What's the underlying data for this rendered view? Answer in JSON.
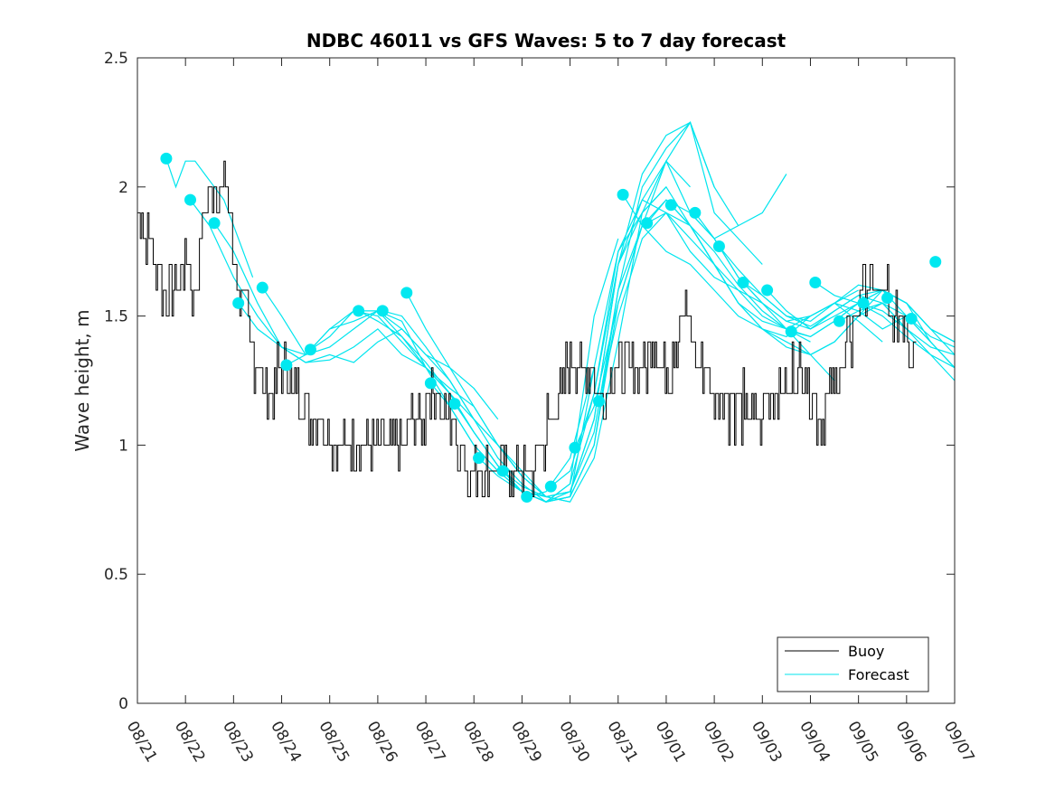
{
  "chart_data": {
    "type": "line",
    "title": "NDBC 46011 vs GFS Waves: 5 to 7 day forecast",
    "xlabel": "",
    "ylabel": "Wave height, m",
    "xlim": [
      0,
      17
    ],
    "ylim": [
      0,
      2.5
    ],
    "yticks": [
      0,
      0.5,
      1,
      1.5,
      2,
      2.5
    ],
    "ytick_labels": [
      "0",
      "0.5",
      "1",
      "1.5",
      "2",
      "2.5"
    ],
    "xtick_labels": [
      "08/21",
      "08/22",
      "08/23",
      "08/24",
      "08/25",
      "08/26",
      "08/27",
      "08/28",
      "08/29",
      "08/30",
      "08/31",
      "09/01",
      "09/02",
      "09/03",
      "09/04",
      "09/05",
      "09/06",
      "09/07"
    ],
    "legend": {
      "position": "bottom-right",
      "entries": [
        {
          "label": "Buoy",
          "color": "#000000"
        },
        {
          "label": "Forecast",
          "color": "#00e5ee"
        }
      ]
    },
    "colors": {
      "buoy": "#000000",
      "forecast": "#00e5ee",
      "marker": "#00e8f0"
    },
    "buoy_anchors": {
      "x": [
        0,
        0.1,
        0.3,
        0.5,
        0.7,
        0.9,
        1.0,
        1.2,
        1.3,
        1.4,
        1.5,
        1.6,
        1.7,
        1.8,
        1.9,
        2.0,
        2.2,
        2.4,
        2.6,
        2.7,
        2.8,
        3.0,
        3.2,
        3.4,
        3.6,
        3.8,
        4.0,
        4.2,
        4.4,
        4.6,
        4.8,
        5.0,
        5.2,
        5.4,
        5.6,
        5.8,
        6.0,
        6.2,
        6.4,
        6.6,
        6.8,
        7.0,
        7.2,
        7.4,
        7.6,
        7.8,
        8.0,
        8.2,
        8.4,
        8.6,
        8.8,
        9.0,
        9.2,
        9.4,
        9.6,
        9.8,
        10.0,
        10.2,
        10.4,
        10.6,
        10.8,
        11.0,
        11.2,
        11.4,
        11.6,
        11.8,
        12.0,
        12.2,
        12.4,
        12.6,
        12.8,
        13.0,
        13.2,
        13.4,
        13.6,
        13.8,
        14.0,
        14.2,
        14.4,
        14.6,
        14.8,
        15.0,
        15.2,
        15.4,
        15.6,
        15.8,
        16.0,
        16.2
      ],
      "y": [
        1.9,
        1.85,
        1.75,
        1.65,
        1.6,
        1.65,
        1.7,
        1.6,
        1.75,
        1.9,
        2.0,
        2.0,
        1.95,
        2.05,
        1.9,
        1.7,
        1.55,
        1.35,
        1.25,
        1.15,
        1.2,
        1.3,
        1.25,
        1.2,
        1.1,
        1.1,
        1.05,
        1.0,
        0.95,
        0.95,
        0.95,
        0.95,
        1.0,
        1.0,
        1.05,
        1.1,
        1.15,
        1.2,
        1.1,
        1.05,
        0.95,
        0.9,
        0.85,
        0.85,
        0.85,
        0.85,
        0.85,
        0.9,
        1.0,
        1.1,
        1.2,
        1.3,
        1.35,
        1.3,
        1.2,
        1.25,
        1.3,
        1.35,
        1.3,
        1.35,
        1.35,
        1.3,
        1.4,
        1.55,
        1.35,
        1.3,
        1.2,
        1.15,
        1.15,
        1.15,
        1.1,
        1.15,
        1.2,
        1.2,
        1.25,
        1.3,
        1.2,
        1.1,
        1.2,
        1.3,
        1.4,
        1.55,
        1.6,
        1.65,
        1.55,
        1.5,
        1.45,
        1.35
      ]
    },
    "forecast_series": [
      {
        "x": [
          0.6,
          0.8,
          1.0,
          1.2,
          1.4,
          1.6,
          1.8,
          2.0,
          2.2,
          2.4
        ],
        "y": [
          2.11,
          2.0,
          2.1,
          2.1,
          2.05,
          2.0,
          1.95,
          1.85,
          1.75,
          1.65
        ]
      },
      {
        "x": [
          1.1,
          1.5,
          2.0,
          2.5,
          3.0,
          3.5,
          4.0,
          4.5,
          5.0,
          5.5,
          6.0,
          6.5,
          7.0,
          7.5
        ],
        "y": [
          1.95,
          1.85,
          1.65,
          1.5,
          1.38,
          1.32,
          1.35,
          1.32,
          1.4,
          1.45,
          1.35,
          1.3,
          1.22,
          1.1
        ]
      },
      {
        "x": [
          1.6,
          2.0,
          2.5,
          3.0,
          3.5,
          4.0,
          4.5,
          5.0,
          5.5,
          6.0,
          6.5,
          7.0,
          7.5,
          8.0
        ],
        "y": [
          1.86,
          1.75,
          1.55,
          1.38,
          1.32,
          1.33,
          1.38,
          1.45,
          1.35,
          1.3,
          1.22,
          1.15,
          1.0,
          0.88
        ]
      },
      {
        "x": [
          2.1,
          2.5,
          3.0,
          3.5,
          4.0,
          4.5,
          5.0,
          5.5,
          6.0,
          6.5,
          7.0,
          7.5,
          8.0,
          8.5
        ],
        "y": [
          1.55,
          1.45,
          1.38,
          1.35,
          1.45,
          1.48,
          1.52,
          1.48,
          1.3,
          1.2,
          1.1,
          1.0,
          0.88,
          0.8
        ]
      },
      {
        "x": [
          2.6,
          3.0,
          3.5,
          4.0,
          4.5,
          5.0,
          5.5,
          6.0,
          6.5,
          7.0,
          7.5,
          8.0,
          8.5,
          9.0
        ],
        "y": [
          1.61,
          1.5,
          1.35,
          1.38,
          1.45,
          1.52,
          1.45,
          1.35,
          1.25,
          1.1,
          1.0,
          0.9,
          0.8,
          0.78
        ]
      },
      {
        "x": [
          3.1,
          3.5,
          4.0,
          4.5,
          5.0,
          5.5,
          6.0,
          6.5,
          7.0,
          7.5,
          8.0,
          8.5,
          9.0,
          9.5
        ],
        "y": [
          1.31,
          1.35,
          1.45,
          1.52,
          1.5,
          1.4,
          1.3,
          1.2,
          1.05,
          0.92,
          0.82,
          0.78,
          0.8,
          1.3
        ]
      },
      {
        "x": [
          3.6,
          4.0,
          4.5,
          5.0,
          5.5,
          6.0,
          6.5,
          7.0,
          7.5,
          8.0,
          8.5,
          9.0,
          9.5,
          10.0
        ],
        "y": [
          1.37,
          1.42,
          1.52,
          1.52,
          1.42,
          1.3,
          1.15,
          1.0,
          0.9,
          0.82,
          0.78,
          0.85,
          1.5,
          1.8
        ]
      },
      {
        "x": [
          4.6,
          5.0,
          5.5,
          6.0,
          6.5,
          7.0,
          7.5,
          8.0,
          8.5,
          9.0,
          9.5,
          10.0,
          10.5,
          11.0
        ],
        "y": [
          1.52,
          1.48,
          1.42,
          1.32,
          1.2,
          1.05,
          0.92,
          0.82,
          0.78,
          0.85,
          1.2,
          1.75,
          1.9,
          2.0
        ]
      },
      {
        "x": [
          5.1,
          5.5,
          6.0,
          6.5,
          7.0,
          7.5,
          8.0,
          8.5,
          9.0,
          9.5,
          10.0,
          10.5,
          11.0,
          11.5
        ],
        "y": [
          1.52,
          1.5,
          1.38,
          1.25,
          1.1,
          0.95,
          0.85,
          0.78,
          0.8,
          1.0,
          1.55,
          1.85,
          2.1,
          2.0
        ]
      },
      {
        "x": [
          5.6,
          6.0,
          6.5,
          7.0,
          7.5,
          8.0,
          8.5,
          9.0,
          9.5,
          10.0,
          10.5,
          11.0,
          11.5,
          12.0
        ],
        "y": [
          1.59,
          1.45,
          1.3,
          1.15,
          1.0,
          0.88,
          0.8,
          0.78,
          0.95,
          1.4,
          1.9,
          2.1,
          2.25,
          2.0
        ]
      },
      {
        "x": [
          6.1,
          6.5,
          7.0,
          7.5,
          8.0,
          8.5,
          9.0,
          9.5,
          10.0,
          10.5,
          11.0,
          11.5,
          12.0,
          12.5
        ],
        "y": [
          1.24,
          1.15,
          1.0,
          0.9,
          0.82,
          0.78,
          0.82,
          1.1,
          1.7,
          2.05,
          2.2,
          2.25,
          2.0,
          1.85
        ]
      },
      {
        "x": [
          6.6,
          7.0,
          7.5,
          8.0,
          8.5,
          9.0,
          9.5,
          10.0,
          10.5,
          11.0,
          11.5,
          12.0,
          12.5,
          13.0
        ],
        "y": [
          1.16,
          1.05,
          0.92,
          0.82,
          0.78,
          0.8,
          1.0,
          1.6,
          2.0,
          2.15,
          2.25,
          1.9,
          1.8,
          1.7
        ]
      },
      {
        "x": [
          7.1,
          7.5,
          8.0,
          8.5,
          9.0,
          9.5,
          10.0,
          10.5,
          11.0,
          11.5,
          12.0,
          12.5,
          13.0,
          13.5
        ],
        "y": [
          0.95,
          0.88,
          0.82,
          0.8,
          0.82,
          1.1,
          1.7,
          1.95,
          2.1,
          1.9,
          1.8,
          1.85,
          1.9,
          2.05
        ]
      },
      {
        "x": [
          7.6,
          8.0,
          8.5,
          9.0,
          9.5,
          10.0,
          10.5,
          11.0,
          11.5,
          12.0,
          12.5,
          13.0,
          13.5,
          14.0
        ],
        "y": [
          0.9,
          0.84,
          0.8,
          0.82,
          1.05,
          1.6,
          1.85,
          1.9,
          1.75,
          1.65,
          1.6,
          1.55,
          1.45,
          1.4
        ]
      },
      {
        "x": [
          8.1,
          8.5,
          9.0,
          9.5,
          10.0,
          10.5,
          11.0,
          11.5,
          12.0,
          12.5,
          13.0,
          13.5,
          14.0,
          14.5
        ],
        "y": [
          0.8,
          0.82,
          0.95,
          1.3,
          1.75,
          1.95,
          1.9,
          1.8,
          1.7,
          1.6,
          1.5,
          1.45,
          1.35,
          1.25
        ]
      },
      {
        "x": [
          8.6,
          9.0,
          9.5,
          10.0,
          10.5,
          11.0,
          11.5,
          12.0,
          12.5,
          13.0,
          13.5,
          14.0,
          14.5,
          15.0
        ],
        "y": [
          0.84,
          0.9,
          1.2,
          1.7,
          1.9,
          2.0,
          1.85,
          1.7,
          1.55,
          1.48,
          1.45,
          1.5,
          1.55,
          1.6
        ]
      },
      {
        "x": [
          9.1,
          9.5,
          10.0,
          10.5,
          11.0,
          11.5,
          12.0,
          12.5,
          13.0,
          13.5,
          14.0,
          14.5,
          15.0,
          15.5
        ],
        "y": [
          0.99,
          1.15,
          1.55,
          1.85,
          1.95,
          1.85,
          1.7,
          1.55,
          1.45,
          1.42,
          1.5,
          1.55,
          1.48,
          1.4
        ]
      },
      {
        "x": [
          9.6,
          10.0,
          10.5,
          11.0,
          11.5,
          12.0,
          12.5,
          13.0,
          13.5,
          14.0,
          14.5,
          15.0,
          15.5,
          16.0
        ],
        "y": [
          1.17,
          1.5,
          1.8,
          1.9,
          1.85,
          1.7,
          1.55,
          1.45,
          1.38,
          1.35,
          1.4,
          1.5,
          1.55,
          1.45
        ]
      },
      {
        "x": [
          10.1,
          10.5,
          11.0,
          11.5,
          12.0,
          12.5,
          13.0,
          13.5,
          14.0,
          14.5,
          15.0,
          15.5,
          16.0,
          16.5
        ],
        "y": [
          1.97,
          1.85,
          1.75,
          1.7,
          1.6,
          1.5,
          1.45,
          1.4,
          1.35,
          1.4,
          1.5,
          1.6,
          1.55,
          1.4
        ]
      },
      {
        "x": [
          10.6,
          11.0,
          11.5,
          12.0,
          12.5,
          13.0,
          13.5,
          14.0,
          14.5,
          15.0,
          15.5,
          16.0,
          16.5,
          17.0
        ],
        "y": [
          1.86,
          1.95,
          1.9,
          1.8,
          1.65,
          1.55,
          1.48,
          1.5,
          1.55,
          1.52,
          1.45,
          1.5,
          1.4,
          1.3
        ]
      },
      {
        "x": [
          11.1,
          11.5,
          12.0,
          12.5,
          13.0,
          13.5,
          14.0,
          14.5,
          15.0,
          15.5,
          16.0,
          16.5,
          17.0
        ],
        "y": [
          1.93,
          1.85,
          1.75,
          1.62,
          1.52,
          1.45,
          1.42,
          1.48,
          1.55,
          1.6,
          1.55,
          1.45,
          1.35
        ]
      },
      {
        "x": [
          11.6,
          12.0,
          12.5,
          13.0,
          13.5,
          14.0,
          14.5,
          15.0,
          15.5,
          16.0,
          16.5,
          17.0
        ],
        "y": [
          1.9,
          1.8,
          1.65,
          1.55,
          1.48,
          1.45,
          1.52,
          1.58,
          1.6,
          1.55,
          1.45,
          1.4
        ]
      },
      {
        "x": [
          12.1,
          12.5,
          13.0,
          13.5,
          14.0,
          14.5,
          15.0,
          15.5,
          16.0,
          16.5,
          17.0
        ],
        "y": [
          1.77,
          1.68,
          1.58,
          1.5,
          1.48,
          1.55,
          1.62,
          1.6,
          1.5,
          1.4,
          1.3
        ]
      },
      {
        "x": [
          12.6,
          13.0,
          13.5,
          14.0,
          14.5,
          15.0,
          15.5,
          16.0,
          16.5,
          17.0
        ],
        "y": [
          1.63,
          1.58,
          1.5,
          1.46,
          1.52,
          1.58,
          1.55,
          1.45,
          1.35,
          1.25
        ]
      },
      {
        "x": [
          13.1,
          13.5,
          14.0,
          14.5,
          15.0,
          15.5,
          16.0,
          16.5,
          17.0
        ],
        "y": [
          1.6,
          1.52,
          1.45,
          1.5,
          1.55,
          1.5,
          1.42,
          1.35,
          1.3
        ]
      },
      {
        "x": [
          13.6,
          14.0,
          14.5,
          15.0,
          15.5,
          16.0,
          16.5,
          17.0
        ],
        "y": [
          1.44,
          1.42,
          1.48,
          1.55,
          1.52,
          1.45,
          1.38,
          1.35
        ]
      },
      {
        "x": [
          14.1,
          14.5,
          15.0,
          15.5,
          16.0,
          16.5,
          17.0
        ],
        "y": [
          1.63,
          1.58,
          1.55,
          1.6,
          1.55,
          1.45,
          1.4
        ]
      },
      {
        "x": [
          14.6,
          15.0,
          15.5,
          16.0,
          16.5,
          17.0
        ],
        "y": [
          1.48,
          1.52,
          1.55,
          1.5,
          1.42,
          1.38
        ]
      }
    ],
    "forecast_markers": {
      "x": [
        0.6,
        1.1,
        1.6,
        2.1,
        2.6,
        3.1,
        3.6,
        4.6,
        5.1,
        5.6,
        6.1,
        6.6,
        7.1,
        7.6,
        8.1,
        8.6,
        9.1,
        9.6,
        10.1,
        10.6,
        11.1,
        11.6,
        12.1,
        12.6,
        13.1,
        13.6,
        14.1,
        14.6,
        15.1,
        15.6,
        16.1,
        16.6
      ],
      "y": [
        2.11,
        1.95,
        1.86,
        1.55,
        1.61,
        1.31,
        1.37,
        1.52,
        1.52,
        1.59,
        1.24,
        1.16,
        0.95,
        0.9,
        0.8,
        0.84,
        0.99,
        1.17,
        1.97,
        1.86,
        1.93,
        1.9,
        1.77,
        1.63,
        1.6,
        1.44,
        1.63,
        1.48,
        1.55,
        1.57,
        1.49,
        1.71
      ]
    }
  }
}
